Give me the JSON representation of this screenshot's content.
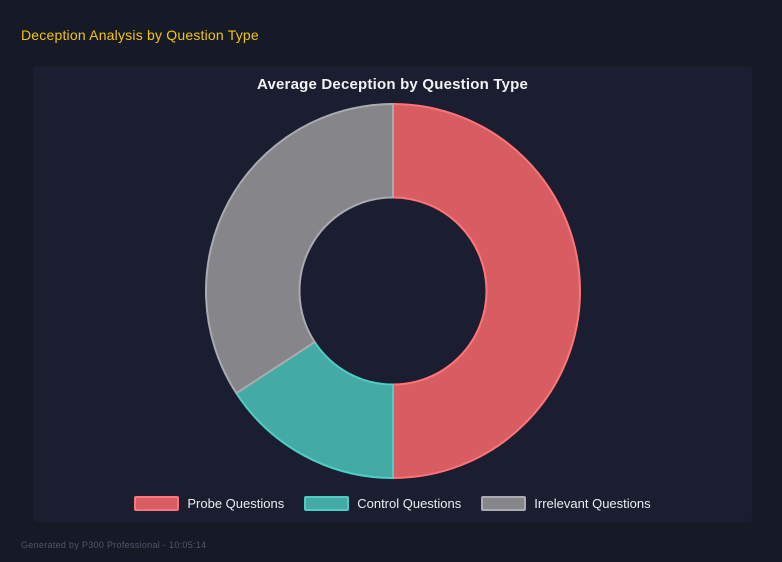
{
  "page": {
    "title": "Deception Analysis by Question Type",
    "title_color": "#f1c40f",
    "background": "#161a27",
    "panel_background": "#1b1e30",
    "footer": "Generated by P300 Professional - 10:05:14",
    "footer_color": "#51556a"
  },
  "chart_data": {
    "type": "pie",
    "subtype": "doughnut",
    "title": "Average Deception by Question Type",
    "categories": [
      "Probe Questions",
      "Control Questions",
      "Irrelevant Questions"
    ],
    "values_percent": [
      50,
      15.8,
      34.2
    ],
    "colors": [
      "#d85d62",
      "#44aaa6",
      "#85858a"
    ],
    "border_colors": [
      "#ff7478",
      "#4ecdc4",
      "#aaaab2"
    ],
    "border_width": 2,
    "start_angle_deg": 0,
    "cutout_percent": 50,
    "legend_position": "bottom",
    "grid": false
  }
}
